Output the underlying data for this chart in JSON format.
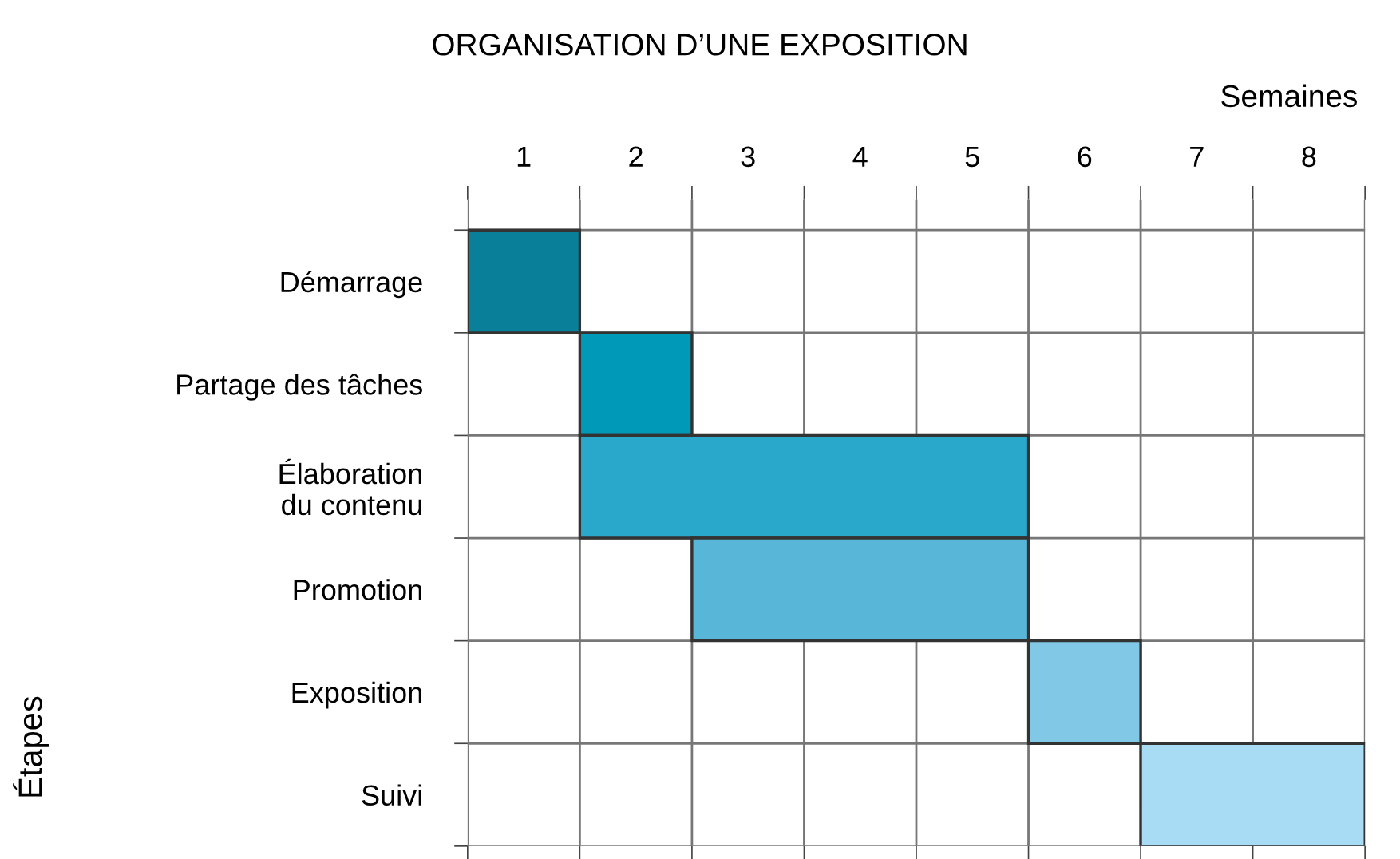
{
  "chart_data": {
    "type": "bar",
    "orientation": "horizontal",
    "title": "ORGANISATION D’UNE EXPOSITION",
    "xlabel": "Semaines",
    "ylabel": "Étapes",
    "categories": [
      "Démarrage",
      "Partage des tâches",
      "Élaboration\ndu contenu",
      "Promotion",
      "Exposition",
      "Suivi"
    ],
    "base": [
      0,
      1,
      1,
      2,
      5,
      6
    ],
    "values": [
      1,
      1,
      4,
      3,
      1,
      2
    ],
    "colors": [
      "#0a7f99",
      "#0099b8",
      "#2aa8cc",
      "#58b6d9",
      "#80c8e6",
      "#a8dcf5"
    ],
    "xlim": [
      0,
      8
    ],
    "xticks": [
      {
        "value": 0,
        "label": null
      },
      {
        "value": 0.5,
        "label": "1"
      },
      {
        "value": 1,
        "label": null
      },
      {
        "value": 1.5,
        "label": "2"
      },
      {
        "value": 2,
        "label": null
      },
      {
        "value": 2.5,
        "label": "3"
      },
      {
        "value": 3,
        "label": null
      },
      {
        "value": 3.5,
        "label": "4"
      },
      {
        "value": 4,
        "label": null
      },
      {
        "value": 4.5,
        "label": "5"
      },
      {
        "value": 5,
        "label": null
      },
      {
        "value": 5.5,
        "label": "6"
      },
      {
        "value": 6,
        "label": null
      },
      {
        "value": 6.5,
        "label": "7"
      },
      {
        "value": 7,
        "label": null
      },
      {
        "value": 7.5,
        "label": "8"
      },
      {
        "value": 8,
        "label": null
      }
    ],
    "grid": true
  }
}
